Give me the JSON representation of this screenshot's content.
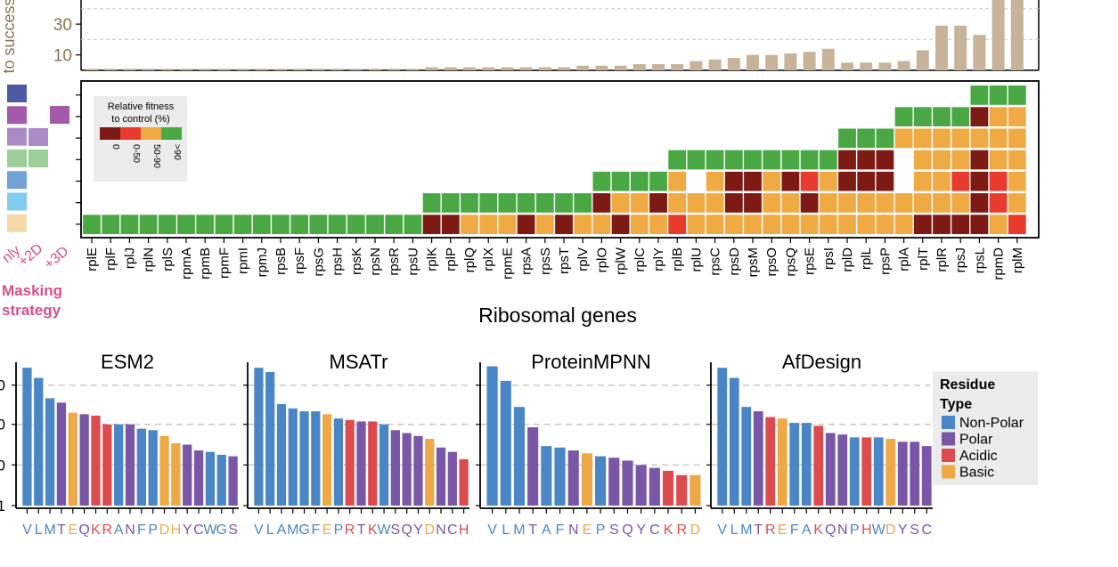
{
  "colors": {
    "trials_bar": "#c7b39a",
    "trials_axis_text": "#8a7350",
    "masking_label": "#d84f8a",
    "fitness_0": "#7d1a14",
    "fitness_0_50": "#e83b2e",
    "fitness_50_90": "#f0aa44",
    "fitness_90": "#4aa844",
    "non_polar": "#4a86c5",
    "polar": "#7a57a6",
    "acidic": "#dc4c4f",
    "basic": "#eea846",
    "strategy_swatches": [
      "#4e5aa6",
      "#a35aa8",
      "#a98bc6",
      "#9ccf98",
      "#73a3d4",
      "#80ccee",
      "#f5d9a8"
    ]
  },
  "chart_data": [
    {
      "type": "bar",
      "panel": "trials",
      "ylabel": "# of trials to success",
      "yticks": [
        10,
        30
      ],
      "categories": [
        "rplE",
        "rplF",
        "rplJ",
        "rplN",
        "rplS",
        "rpmA",
        "rpmB",
        "rpmF",
        "rpmI",
        "rpmJ",
        "rpsB",
        "rpsF",
        "rpsG",
        "rpsH",
        "rpsK",
        "rpsN",
        "rpsR",
        "rpsU",
        "rplK",
        "rplP",
        "rplQ",
        "rplX",
        "rpmE",
        "rpsA",
        "rpsS",
        "rpsT",
        "rplV",
        "rplO",
        "rplW",
        "rplC",
        "rplY",
        "rplB",
        "rplU",
        "rpsC",
        "rpsD",
        "rpsM",
        "rpsO",
        "rpsQ",
        "rpsE",
        "rpsI",
        "rplD",
        "rplL",
        "rpsP",
        "rplA",
        "rplT",
        "rplR",
        "rpsJ",
        "rpsL",
        "rpmD",
        "rplM"
      ],
      "values": [
        1,
        1,
        1,
        1,
        1,
        1,
        1,
        1,
        1,
        1,
        1,
        1,
        1,
        1,
        1,
        1,
        1,
        1,
        2,
        2,
        2,
        2,
        2,
        2,
        2,
        2,
        3,
        3,
        3,
        4,
        4,
        4,
        6,
        7,
        8,
        10,
        10,
        11,
        12,
        14,
        5,
        5,
        5,
        6,
        13,
        29,
        29,
        23,
        47,
        47
      ]
    },
    {
      "type": "heatmap",
      "panel": "fitness",
      "xlabel": "Ribosomal genes",
      "legend_title": "Relative fitness to control (%)",
      "legend_labels": [
        "0",
        "0-50",
        "50-90",
        ">90"
      ],
      "rows_note": "levels: 0=none, 1=0%, 2=0-50%, 3=50-90%, 4=>90%; row index 0 = bottom",
      "columns": [
        [
          4
        ],
        [
          4
        ],
        [
          4
        ],
        [
          4
        ],
        [
          4
        ],
        [
          4
        ],
        [
          4
        ],
        [
          4
        ],
        [
          4
        ],
        [
          4
        ],
        [
          4
        ],
        [
          4
        ],
        [
          4
        ],
        [
          4
        ],
        [
          4
        ],
        [
          4
        ],
        [
          4
        ],
        [
          4
        ],
        [
          1,
          4
        ],
        [
          1,
          4
        ],
        [
          3,
          4
        ],
        [
          3,
          4
        ],
        [
          3,
          4
        ],
        [
          1,
          4
        ],
        [
          3,
          4
        ],
        [
          1,
          4
        ],
        [
          3,
          4
        ],
        [
          3,
          1,
          4
        ],
        [
          1,
          3,
          4
        ],
        [
          3,
          3,
          4
        ],
        [
          3,
          1,
          4
        ],
        [
          2,
          3,
          3,
          4
        ],
        [
          3,
          3,
          0,
          4
        ],
        [
          3,
          3,
          3,
          4
        ],
        [
          3,
          1,
          1,
          4
        ],
        [
          3,
          1,
          1,
          4
        ],
        [
          3,
          3,
          3,
          4
        ],
        [
          3,
          3,
          1,
          4
        ],
        [
          3,
          1,
          2,
          4
        ],
        [
          3,
          3,
          3,
          4
        ],
        [
          3,
          3,
          1,
          1,
          4
        ],
        [
          3,
          3,
          1,
          1,
          4
        ],
        [
          3,
          3,
          1,
          1,
          4
        ],
        [
          3,
          3,
          0,
          0,
          3,
          4
        ],
        [
          1,
          3,
          3,
          3,
          3,
          4
        ],
        [
          1,
          3,
          3,
          3,
          3,
          4
        ],
        [
          1,
          3,
          2,
          3,
          3,
          4
        ],
        [
          1,
          1,
          1,
          1,
          3,
          1,
          4
        ],
        [
          3,
          2,
          2,
          3,
          3,
          3,
          4
        ],
        [
          2,
          3,
          3,
          3,
          3,
          3,
          4
        ]
      ]
    },
    {
      "type": "bar",
      "panel": "ESM2",
      "title": "ESM2",
      "categories": [
        "V",
        "L",
        "M",
        "T",
        "E",
        "Q",
        "K",
        "R",
        "A",
        "N",
        "F",
        "P",
        "D",
        "H",
        "Y",
        "C",
        "W",
        "G",
        "S"
      ],
      "values": [
        0.95,
        0.88,
        0.74,
        0.71,
        0.64,
        0.63,
        0.62,
        0.56,
        0.56,
        0.56,
        0.53,
        0.52,
        0.48,
        0.43,
        0.42,
        0.38,
        0.37,
        0.35,
        0.34
      ],
      "types": [
        "np",
        "np",
        "np",
        "p",
        "b",
        "p",
        "a",
        "a",
        "np",
        "p",
        "np",
        "np",
        "b",
        "b",
        "p",
        "p",
        "np",
        "np",
        "p"
      ]
    },
    {
      "type": "bar",
      "panel": "MSATr",
      "title": "MSATr",
      "categories": [
        "V",
        "L",
        "A",
        "M",
        "G",
        "F",
        "E",
        "P",
        "R",
        "T",
        "K",
        "W",
        "S",
        "Q",
        "Y",
        "D",
        "N",
        "C",
        "H"
      ],
      "values": [
        0.95,
        0.92,
        0.7,
        0.67,
        0.65,
        0.65,
        0.63,
        0.6,
        0.59,
        0.58,
        0.58,
        0.56,
        0.52,
        0.5,
        0.48,
        0.46,
        0.4,
        0.37,
        0.32
      ],
      "types": [
        "np",
        "np",
        "np",
        "np",
        "np",
        "np",
        "b",
        "np",
        "a",
        "p",
        "a",
        "np",
        "p",
        "p",
        "p",
        "b",
        "p",
        "p",
        "a"
      ]
    },
    {
      "type": "bar",
      "panel": "ProteinMPNN",
      "title": "ProteinMPNN",
      "categories": [
        "V",
        "L",
        "M",
        "T",
        "A",
        "F",
        "N",
        "E",
        "P",
        "S",
        "Q",
        "Y",
        "C",
        "K",
        "R",
        "D"
      ],
      "values": [
        0.96,
        0.86,
        0.68,
        0.54,
        0.41,
        0.4,
        0.38,
        0.36,
        0.34,
        0.33,
        0.31,
        0.28,
        0.26,
        0.24,
        0.21,
        0.21
      ],
      "types": [
        "np",
        "np",
        "np",
        "p",
        "np",
        "np",
        "p",
        "b",
        "np",
        "p",
        "p",
        "p",
        "p",
        "a",
        "a",
        "b"
      ]
    },
    {
      "type": "bar",
      "panel": "AfDesign",
      "title": "AfDesign",
      "categories": [
        "V",
        "L",
        "M",
        "T",
        "R",
        "E",
        "F",
        "A",
        "K",
        "Q",
        "N",
        "P",
        "H",
        "W",
        "D",
        "Y",
        "S",
        "C"
      ],
      "values": [
        0.95,
        0.88,
        0.68,
        0.65,
        0.61,
        0.6,
        0.57,
        0.57,
        0.55,
        0.5,
        0.49,
        0.47,
        0.47,
        0.47,
        0.46,
        0.44,
        0.44,
        0.41
      ],
      "types": [
        "np",
        "np",
        "np",
        "p",
        "a",
        "b",
        "np",
        "np",
        "a",
        "p",
        "p",
        "np",
        "a",
        "np",
        "b",
        "p",
        "p",
        "p"
      ]
    }
  ],
  "residue_legend": {
    "title": "Residue Type",
    "items": [
      {
        "label": "Non-Polar",
        "key": "np"
      },
      {
        "label": "Polar",
        "key": "p"
      },
      {
        "label": "Acidic",
        "key": "a"
      },
      {
        "label": "Basic",
        "key": "b"
      }
    ]
  },
  "masking": {
    "label": "Masking strategy",
    "tick_labels": [
      "nly",
      "+2D",
      "+3D"
    ]
  },
  "partial_ticks": [
    "0",
    "0",
    "0",
    "1"
  ]
}
